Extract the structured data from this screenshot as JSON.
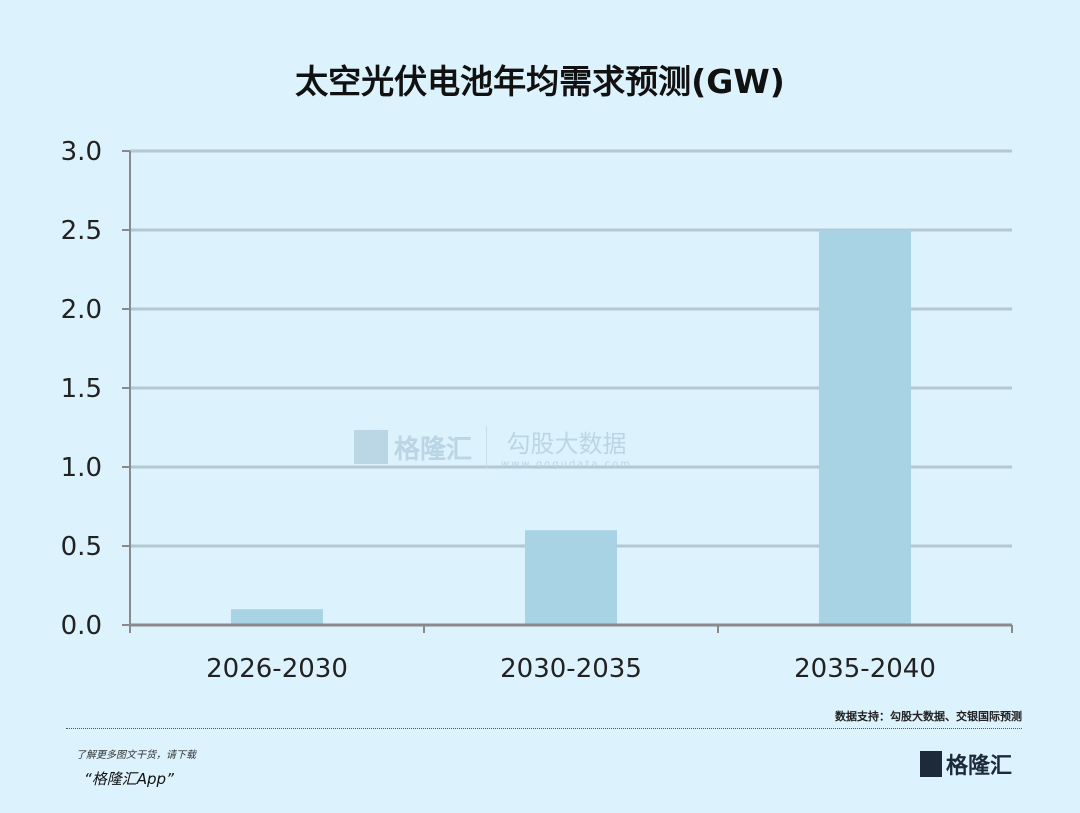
{
  "chart_data": {
    "type": "bar",
    "title": "太空光伏电池年均需求预测(GW)",
    "categories": [
      "2026-2030",
      "2030-2035",
      "2035-2040"
    ],
    "values": [
      0.1,
      0.6,
      2.5
    ],
    "ylim": [
      0,
      3.0
    ],
    "yticks": [
      "0.0",
      "0.5",
      "1.0",
      "1.5",
      "2.0",
      "2.5",
      "3.0"
    ],
    "grid": true,
    "xlabel": "",
    "ylabel": "",
    "bar_color": "#a8d3e5",
    "grid_color": "#b4c8d2"
  },
  "watermark": {
    "brand": "格隆汇",
    "brand2": "勾股大数据",
    "url": "www.gogudata.com"
  },
  "footer": {
    "source": "数据支持：勾股大数据、交银国际预测",
    "promo_line1": "了解更多图文干货，请下载",
    "promo_line2": "“格隆汇App”",
    "logo": "格隆汇"
  }
}
